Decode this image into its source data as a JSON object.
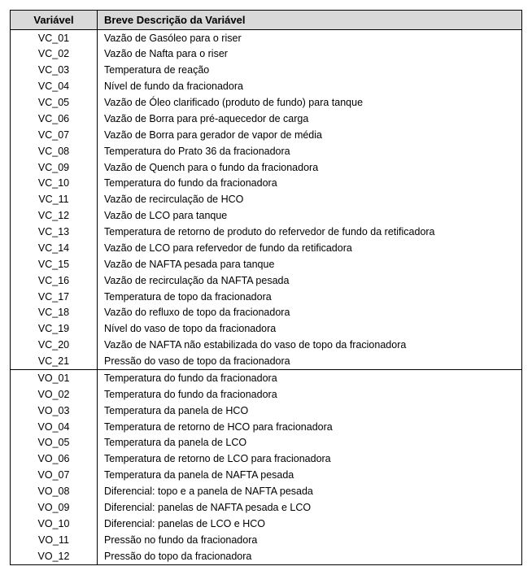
{
  "table": {
    "header": {
      "variavel": "Variável",
      "descricao": "Breve Descrição da Variável"
    },
    "groups": [
      {
        "rows": [
          {
            "var": "VC_01",
            "desc": "Vazão de Gasóleo para o riser"
          },
          {
            "var": "VC_02",
            "desc": "Vazão de Nafta para o riser"
          },
          {
            "var": "VC_03",
            "desc": "Temperatura de reação"
          },
          {
            "var": "VC_04",
            "desc": "Nível de fundo da fracionadora"
          },
          {
            "var": "VC_05",
            "desc": "Vazão de Óleo clarificado (produto de fundo) para tanque"
          },
          {
            "var": "VC_06",
            "desc": "Vazão de Borra para pré-aquecedor de carga"
          },
          {
            "var": "VC_07",
            "desc": "Vazão de Borra para gerador de vapor de média"
          },
          {
            "var": "VC_08",
            "desc": "Temperatura do Prato 36 da fracionadora"
          },
          {
            "var": "VC_09",
            "desc": "Vazão de Quench para o fundo da fracionadora"
          },
          {
            "var": "VC_10",
            "desc": "Temperatura do fundo da fracionadora"
          },
          {
            "var": "VC_11",
            "desc": "Vazão de recirculação de HCO"
          },
          {
            "var": "VC_12",
            "desc": "Vazão de LCO para tanque"
          },
          {
            "var": "VC_13",
            "desc": "Temperatura de retorno de produto do refervedor de fundo da retificadora"
          },
          {
            "var": "VC_14",
            "desc": "Vazão de LCO para refervedor de fundo da retificadora"
          },
          {
            "var": "VC_15",
            "desc": "Vazão de NAFTA pesada para tanque"
          },
          {
            "var": "VC_16",
            "desc": "Vazão de recirculação da NAFTA pesada"
          },
          {
            "var": "VC_17",
            "desc": "Temperatura de topo da fracionadora"
          },
          {
            "var": "VC_18",
            "desc": "Vazão do refluxo de topo da fracionadora"
          },
          {
            "var": "VC_19",
            "desc": "Nível do vaso de topo da fracionadora"
          },
          {
            "var": "VC_20",
            "desc": "Vazão de NAFTA não estabilizada do vaso de topo da fracionadora"
          },
          {
            "var": "VC_21",
            "desc": "Pressão do vaso de topo da fracionadora"
          }
        ]
      },
      {
        "rows": [
          {
            "var": "VO_01",
            "desc": "Temperatura do fundo da fracionadora"
          },
          {
            "var": "VO_02",
            "desc": "Temperatura do fundo da fracionadora"
          },
          {
            "var": "VO_03",
            "desc": "Temperatura da panela de HCO"
          },
          {
            "var": "VO_04",
            "desc": "Temperatura de retorno de HCO para fracionadora"
          },
          {
            "var": "VO_05",
            "desc": "Temperatura da panela de LCO"
          },
          {
            "var": "VO_06",
            "desc": "Temperatura de retorno de LCO para fracionadora"
          },
          {
            "var": "VO_07",
            "desc": "Temperatura da panela de NAFTA pesada"
          },
          {
            "var": "VO_08",
            "desc": "Diferencial: topo e a panela de NAFTA pesada"
          },
          {
            "var": "VO_09",
            "desc": "Diferencial: panelas de NAFTA pesada e LCO"
          },
          {
            "var": "VO_10",
            "desc": "Diferencial: panelas de LCO e HCO"
          },
          {
            "var": "VO_11",
            "desc": "Pressão no fundo da fracionadora"
          },
          {
            "var": "VO_12",
            "desc": "Pressão do topo da fracionadora"
          }
        ]
      }
    ]
  },
  "style": {
    "header_bg": "#d9d9d9",
    "border_color": "#000000",
    "font_family": "Arial",
    "body_fontsize_pt": 10,
    "header_fontsize_pt": 10
  }
}
